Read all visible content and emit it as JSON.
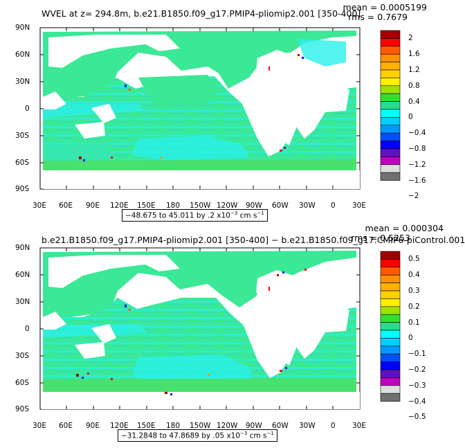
{
  "panels": [
    {
      "title": "WVEL at z= 294.8m, b.e21.B1850.f09_g17.PMIP4-pliomip2.001 [350-400]",
      "mean": "mean = 0.0005199",
      "rms": "rms = 0.7679",
      "range": "−48.675 to 45.011 by .2 x10",
      "range_exp": "−3",
      "range_unit": " cm s",
      "range_unit_exp": "−1",
      "colorbar_labels": [
        "2",
        "1.6",
        "1.2",
        "0.8",
        "0.4",
        "0",
        "−0.4",
        "−0.8",
        "−1.2",
        "−1.6",
        "−2"
      ]
    },
    {
      "title": "b.e21.B1850.f09_g17.PMIP4-pliomip2.001 [350-400] − b.e21.B1850.f09_g17.CMIP6-piControl.001",
      "mean": "mean = 0.000304",
      "rms": "rms = 0.5253",
      "range": "−31.2848 to 47.8689 by .05 x10",
      "range_exp": "−3",
      "range_unit": " cm s",
      "range_unit_exp": "−1",
      "colorbar_labels": [
        "0.5",
        "0.4",
        "0.3",
        "0.2",
        "0.1",
        "0",
        "−0.1",
        "−0.2",
        "−0.3",
        "−0.4",
        "−0.5"
      ]
    }
  ],
  "lat_labels": [
    "90N",
    "60N",
    "30N",
    "0",
    "30S",
    "60S",
    "90S"
  ],
  "lon_labels": [
    "30E",
    "60E",
    "90E",
    "120E",
    "150E",
    "180",
    "150W",
    "120W",
    "90W",
    "60W",
    "30W",
    "0",
    "30E"
  ],
  "colorbar_colors": [
    "#a00000",
    "#ff0000",
    "#ff5a00",
    "#ff9000",
    "#ffb000",
    "#ffd000",
    "#fff000",
    "#a0e000",
    "#30e030",
    "#20e090",
    "#00ffff",
    "#00d0ff",
    "#009aff",
    "#0050ff",
    "#0000ff",
    "#6010c0",
    "#c000c0",
    "#dcdcdc",
    "#707070"
  ],
  "ocean_color": "#3ae896",
  "ocean_light": "#2af0e8",
  "land_color": "#ffffff"
}
